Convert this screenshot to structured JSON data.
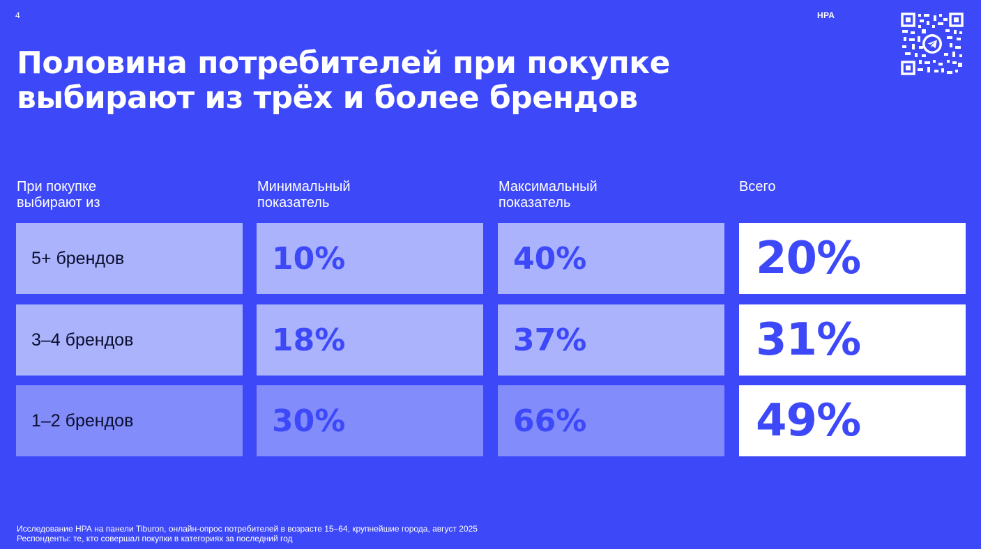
{
  "page_number": "4",
  "brand": "НРА",
  "title": {
    "line1": "Половина потребителей при покупке",
    "line2": "выбирают из трёх и более брендов"
  },
  "columns": {
    "label": "При покупке\nвыбирают из",
    "min": "Минимальный\nпоказатель",
    "max": "Максимальный\nпоказатель",
    "total": "Всего"
  },
  "rows": [
    {
      "label": "5+ брендов",
      "min": "10%",
      "max": "40%",
      "total": "20%"
    },
    {
      "label": "3–4 брендов",
      "min": "18%",
      "max": "37%",
      "total": "31%"
    },
    {
      "label": "1–2 брендов",
      "min": "30%",
      "max": "66%",
      "total": "49%"
    }
  ],
  "footnote": {
    "line1": "Исследование НРА на панели Tiburon, онлайн-опрос потребителей в возрасте 15–64, крупнейшие города, август 2025",
    "line2": "Респонденты: те, кто совершал покупки в категориях за последний год"
  },
  "colors": {
    "background": "#3d48f9",
    "cell_light": "#aab3fc",
    "cell_mid": "#828cfb",
    "total_cell": "#ffffff"
  },
  "icons": {
    "qr": "qr-code-icon",
    "telegram": "telegram-icon"
  }
}
